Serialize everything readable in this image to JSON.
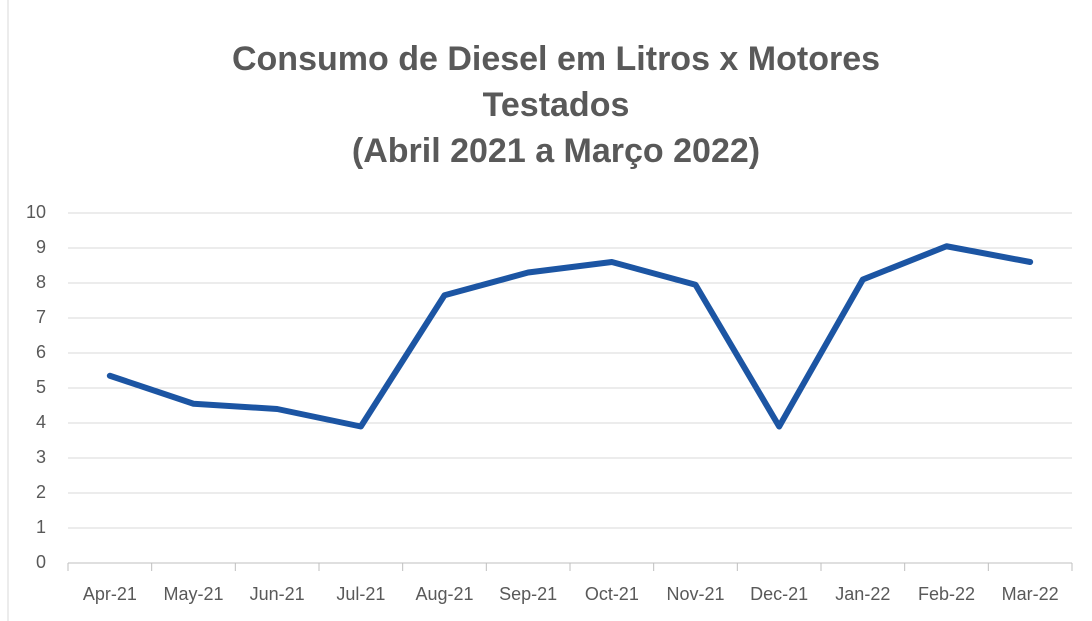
{
  "chart_data": {
    "type": "line",
    "title": "Consumo de Diesel em Litros x Motores Testados\n(Abril 2021 a Março 2022)",
    "categories": [
      "Apr-21",
      "May-21",
      "Jun-21",
      "Jul-21",
      "Aug-21",
      "Sep-21",
      "Oct-21",
      "Nov-21",
      "Dec-21",
      "Jan-22",
      "Feb-22",
      "Mar-22"
    ],
    "series": [
      {
        "color": "#1c55a3",
        "values": [
          5.35,
          4.55,
          4.4,
          3.9,
          7.65,
          8.3,
          8.6,
          7.95,
          3.9,
          8.1,
          9.05,
          8.6
        ]
      }
    ],
    "ylim": [
      0,
      10
    ],
    "yticks": [
      0,
      1,
      2,
      3,
      4,
      5,
      6,
      7,
      8,
      9,
      10
    ],
    "grid": true
  }
}
